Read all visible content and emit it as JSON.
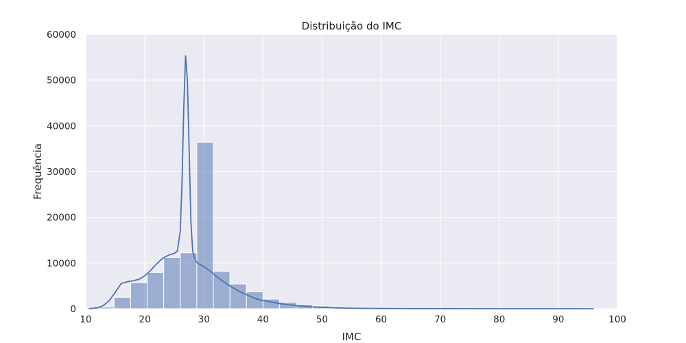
{
  "chart_data": {
    "type": "bar",
    "title": "Distribuição do IMC",
    "xlabel": "IMC",
    "ylabel": "Frequência",
    "xlim": [
      10,
      100
    ],
    "ylim": [
      0,
      60000
    ],
    "xticks": [
      10,
      20,
      30,
      40,
      50,
      60,
      70,
      80,
      90,
      100
    ],
    "yticks": [
      0,
      10000,
      20000,
      30000,
      40000,
      50000,
      60000
    ],
    "grid": true,
    "bar_color": "#4c72b0",
    "bins": [
      {
        "x0": 12.0,
        "x1": 14.8,
        "value": 350
      },
      {
        "x0": 14.8,
        "x1": 17.6,
        "value": 2500
      },
      {
        "x0": 17.6,
        "x1": 20.4,
        "value": 5700
      },
      {
        "x0": 20.4,
        "x1": 23.2,
        "value": 7900
      },
      {
        "x0": 23.2,
        "x1": 26.0,
        "value": 11200
      },
      {
        "x0": 26.0,
        "x1": 28.8,
        "value": 12200
      },
      {
        "x0": 28.8,
        "x1": 31.6,
        "value": 36400
      },
      {
        "x0": 31.6,
        "x1": 34.4,
        "value": 8200
      },
      {
        "x0": 34.4,
        "x1": 37.2,
        "value": 5400
      },
      {
        "x0": 37.2,
        "x1": 40.0,
        "value": 3700
      },
      {
        "x0": 40.0,
        "x1": 42.8,
        "value": 2100
      },
      {
        "x0": 42.8,
        "x1": 45.6,
        "value": 1400
      },
      {
        "x0": 45.6,
        "x1": 48.4,
        "value": 900
      },
      {
        "x0": 48.4,
        "x1": 51.2,
        "value": 600
      },
      {
        "x0": 51.2,
        "x1": 54.0,
        "value": 400
      },
      {
        "x0": 54.0,
        "x1": 56.8,
        "value": 250
      },
      {
        "x0": 56.8,
        "x1": 59.6,
        "value": 180
      },
      {
        "x0": 59.6,
        "x1": 62.4,
        "value": 130
      },
      {
        "x0": 62.4,
        "x1": 65.2,
        "value": 90
      },
      {
        "x0": 65.2,
        "x1": 68.0,
        "value": 60
      },
      {
        "x0": 68.0,
        "x1": 70.8,
        "value": 40
      },
      {
        "x0": 70.8,
        "x1": 73.6,
        "value": 30
      },
      {
        "x0": 73.6,
        "x1": 76.4,
        "value": 20
      },
      {
        "x0": 76.4,
        "x1": 79.2,
        "value": 15
      },
      {
        "x0": 79.2,
        "x1": 82.0,
        "value": 10
      },
      {
        "x0": 82.0,
        "x1": 84.8,
        "value": 8
      },
      {
        "x0": 84.8,
        "x1": 87.6,
        "value": 6
      },
      {
        "x0": 87.6,
        "x1": 90.4,
        "value": 5
      },
      {
        "x0": 90.4,
        "x1": 93.2,
        "value": 4
      },
      {
        "x0": 93.2,
        "x1": 96.0,
        "value": 120
      }
    ],
    "kde": {
      "x": [
        10.5,
        12,
        13,
        14,
        15,
        16,
        17,
        18,
        19,
        20,
        21,
        22,
        23,
        24,
        25,
        25.5,
        26,
        26.3,
        26.6,
        26.9,
        27.2,
        27.5,
        27.8,
        28.1,
        28.4,
        28.7,
        29,
        30,
        31,
        32,
        33,
        34,
        35,
        36,
        37,
        38,
        39,
        40,
        42,
        44,
        46,
        48,
        50,
        52,
        55,
        60,
        65,
        70,
        80,
        90,
        96
      ],
      "y": [
        0,
        200,
        700,
        1800,
        3600,
        5500,
        5900,
        6100,
        6400,
        7200,
        8400,
        9800,
        11000,
        11700,
        12100,
        12600,
        17000,
        28000,
        44000,
        55300,
        50000,
        35000,
        19000,
        12600,
        11200,
        10300,
        9900,
        9200,
        8300,
        7200,
        6200,
        5300,
        4500,
        3800,
        3200,
        2600,
        2100,
        1800,
        1300,
        900,
        650,
        450,
        300,
        200,
        110,
        45,
        20,
        10,
        5,
        2,
        0
      ]
    }
  }
}
